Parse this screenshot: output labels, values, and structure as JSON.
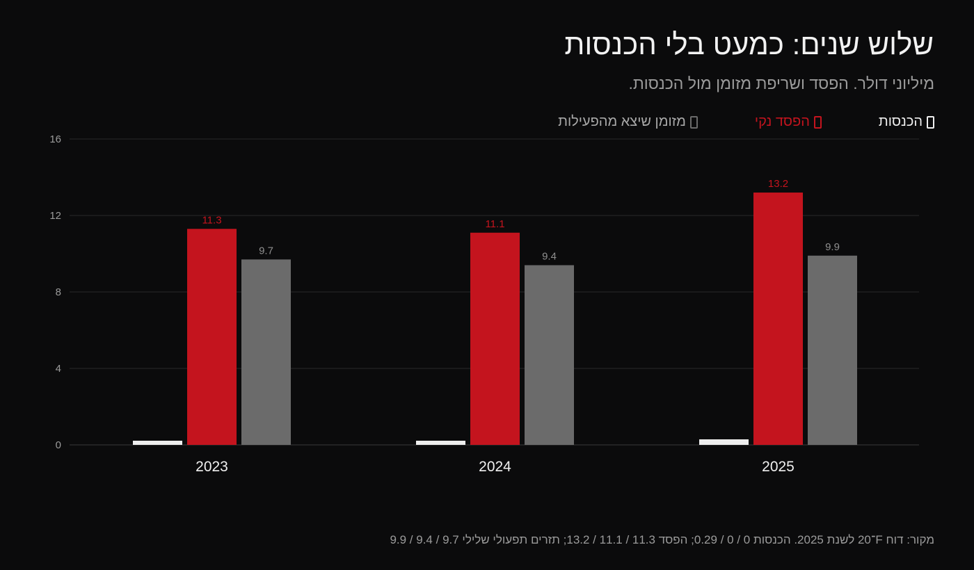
{
  "title": "שלוש שנים: כמעט בלי הכנסות",
  "subtitle": "מיליוני דולר. הפסד ושריפת מזומן מול הכנסות.",
  "source": "מקור: דוח F־20 לשנת 2025. הכנסות 0 / 0 / 0.29; הפסד 11.3 / 11.1 / 13.2; תזרים תפעולי שלילי 9.7 / 9.4 / 9.9",
  "colors": {
    "background": "#0b0b0c",
    "revenue": "#eeeeee",
    "net_loss": "#c4141e",
    "cash_burn": "#6b6b6b",
    "grid": "#2a2a2a"
  },
  "chart_data": {
    "type": "bar",
    "categories": [
      "2023",
      "2024",
      "2025"
    ],
    "series": [
      {
        "name": "הכנסות",
        "values": [
          0,
          0,
          0.29
        ],
        "color": "#eeeeee",
        "labels": [
          "",
          "",
          ""
        ]
      },
      {
        "name": "הפסד נקי",
        "values": [
          11.3,
          11.1,
          13.2
        ],
        "color": "#c4141e",
        "labels": [
          "11.3",
          "11.1",
          "13.2"
        ]
      },
      {
        "name": "מזומן שיצא מהפעילות",
        "values": [
          9.7,
          9.4,
          9.9
        ],
        "color": "#6b6b6b",
        "labels": [
          "9.7",
          "9.4",
          "9.9"
        ]
      }
    ],
    "ylim": [
      0,
      16
    ],
    "yticks": [
      0,
      4,
      8,
      12,
      16
    ],
    "grid": true,
    "legend_position": "top-right",
    "xlabel": "",
    "ylabel": ""
  }
}
